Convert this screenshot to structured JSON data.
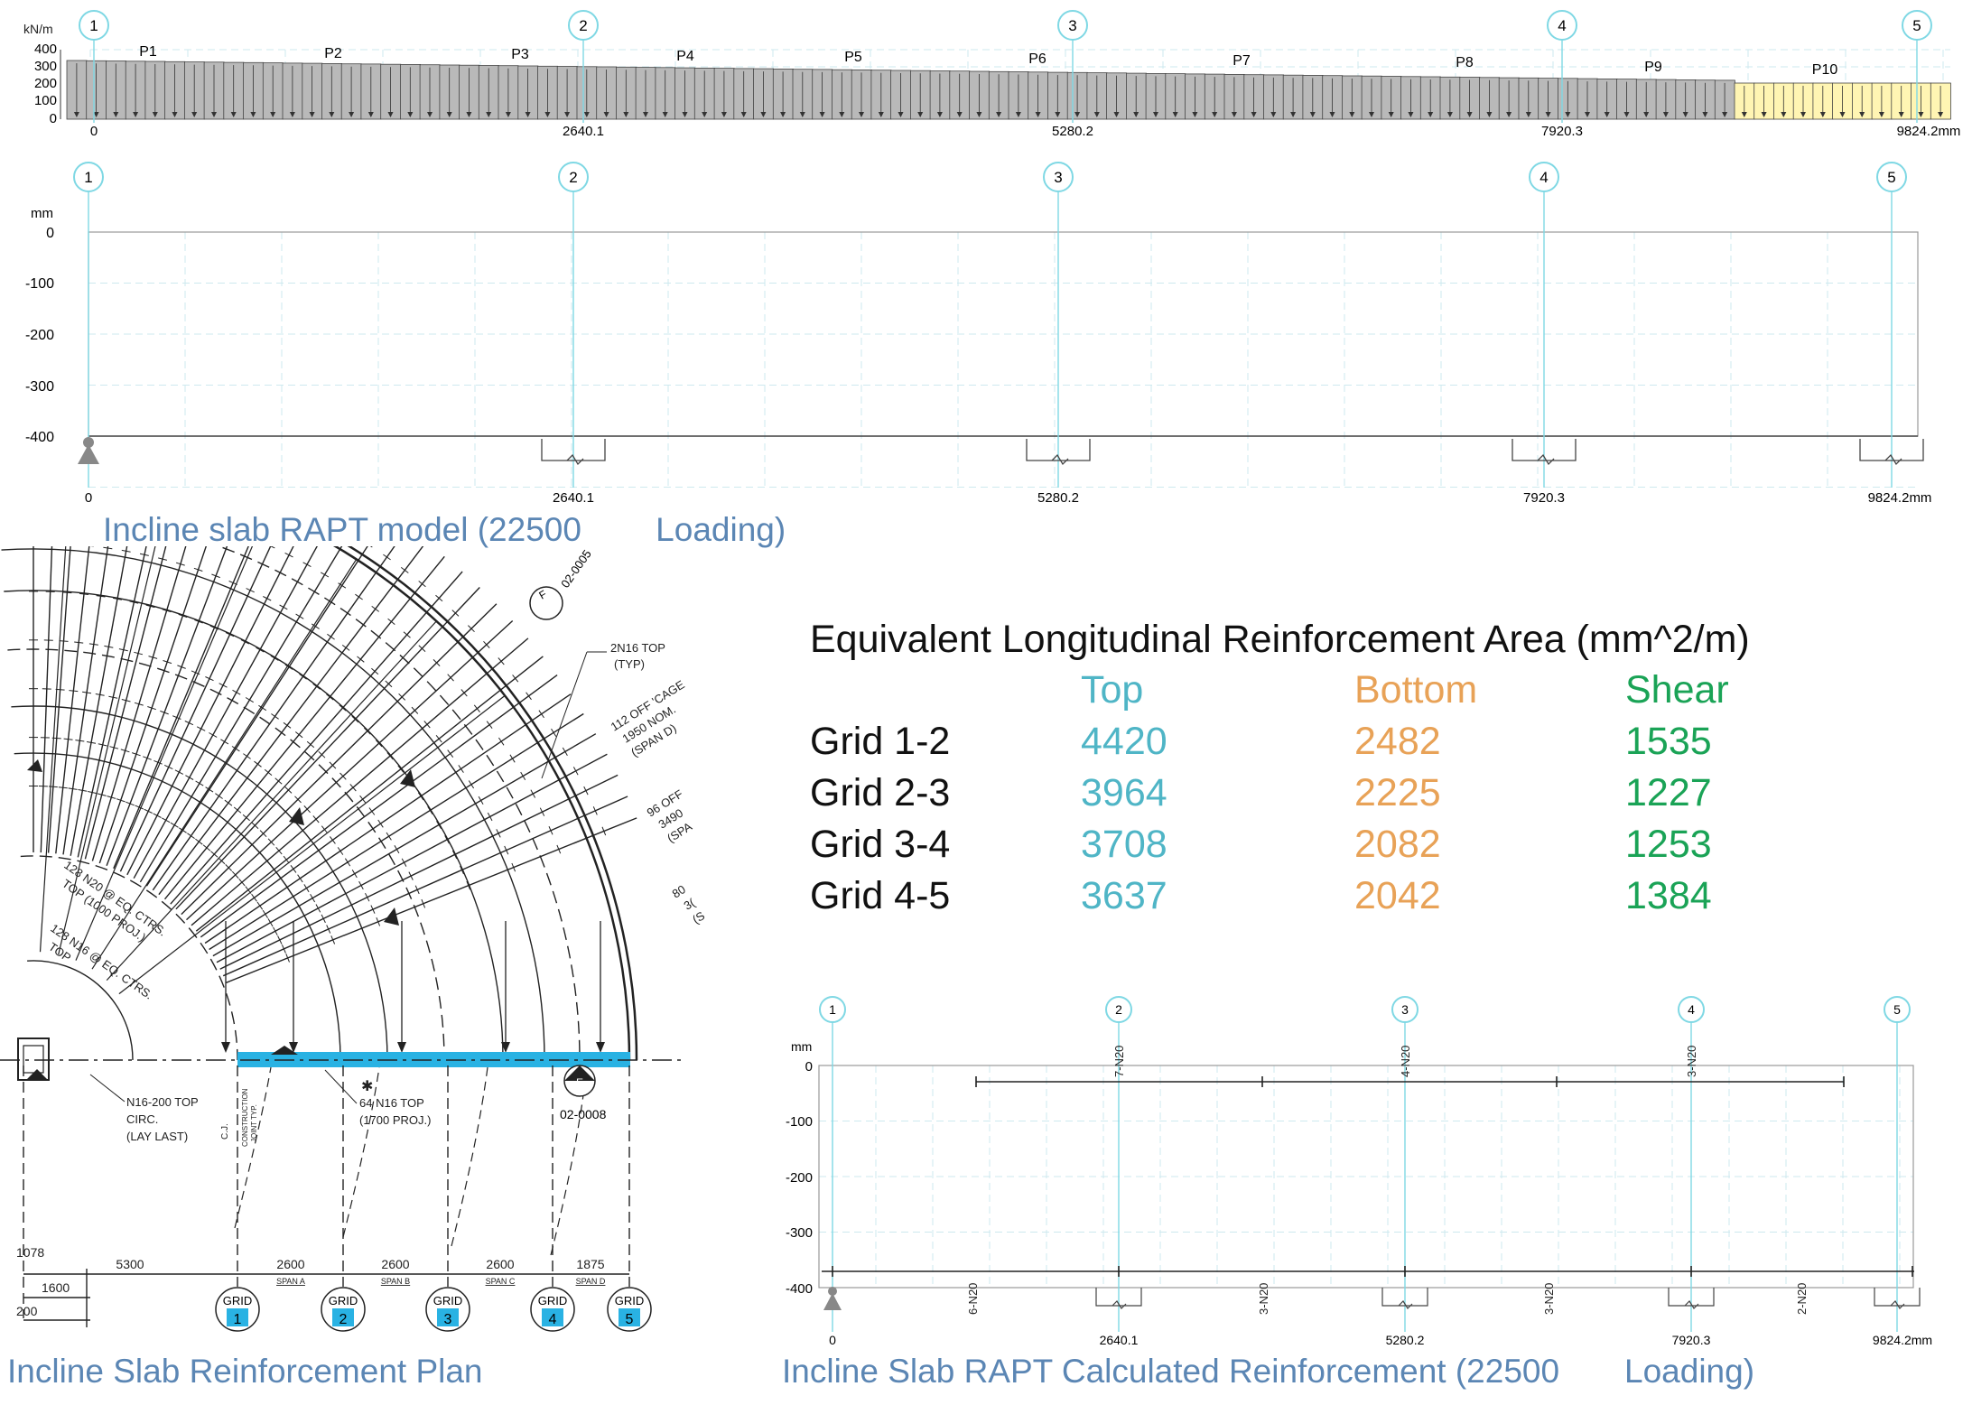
{
  "loading_chart": {
    "unit": "kN/m",
    "y_ticks": [
      "400",
      "300",
      "200",
      "100",
      "0"
    ],
    "grids": [
      "1",
      "2",
      "3",
      "4",
      "5"
    ],
    "panels": [
      "P1",
      "P2",
      "P3",
      "P4",
      "P5",
      "P6",
      "P7",
      "P8",
      "P9",
      "P10"
    ],
    "x_labels": [
      "0",
      "2640.1",
      "5280.2",
      "7920.3",
      "9824.2mm"
    ]
  },
  "deflection_chart": {
    "unit": "mm",
    "y_ticks": [
      "0",
      "-100",
      "-200",
      "-300",
      "-400"
    ],
    "grids": [
      "1",
      "2",
      "3",
      "4",
      "5"
    ],
    "x_labels": [
      "0",
      "2640.1",
      "5280.2",
      "7920.3",
      "9824.2mm"
    ]
  },
  "captions": {
    "model": "Incline slab RAPT model (22500        Loading)",
    "plan": "Incline Slab Reinforcement Plan",
    "calc": "Incline Slab RAPT Calculated Reinforcement (22500       Loading)"
  },
  "table": {
    "title": "Equivalent Longitudinal Reinforcement Area (mm^2/m)",
    "headers": [
      "Top",
      "Bottom",
      "Shear"
    ],
    "colors": {
      "top": "#4fb5c6",
      "bottom": "#e8a257",
      "shear": "#1aa356"
    },
    "rows": [
      {
        "grid": "Grid 1-2",
        "top": "4420",
        "bottom": "2482",
        "shear": "1535"
      },
      {
        "grid": "Grid 2-3",
        "top": "3964",
        "bottom": "2225",
        "shear": "1227"
      },
      {
        "grid": "Grid 3-4",
        "top": "3708",
        "bottom": "2082",
        "shear": "1253"
      },
      {
        "grid": "Grid 4-5",
        "top": "3637",
        "bottom": "2042",
        "shear": "1384"
      }
    ]
  },
  "plan": {
    "callouts": {
      "top_typ": [
        "2N16 TOP",
        "(TYP)"
      ],
      "cage_a": [
        "112 OFF 'CAGE",
        "1950 NOM.",
        "(SPAN D)"
      ],
      "cage_b": [
        "96 OFF",
        "3490",
        "(SPA"
      ],
      "cage_c": [
        "80",
        "3(",
        "(S"
      ],
      "n20": [
        "128 N20 @ EQ. CTRS.",
        "TOP (1000 PROJ.)"
      ],
      "n16": [
        "128 N16 @ EQ. CTRS.",
        "TOP"
      ],
      "circ": [
        "N16-200 TOP",
        "CIRC.",
        "(LAY LAST)"
      ],
      "n16_top": [
        "64 N16 TOP",
        "(1700 PROJ.)"
      ],
      "cj": [
        "C.J.",
        "CONSTRUCTION",
        "JOINT TYP."
      ],
      "ref_top": "02-0005",
      "ref_bottom": "02-0008",
      "section_top": "F",
      "section_bottom": "E"
    },
    "dimensions": [
      "5300",
      "2600",
      "2600",
      "2600",
      "1875"
    ],
    "spans": [
      "SPAN A",
      "SPAN B",
      "SPAN C",
      "SPAN D"
    ],
    "left_dims": [
      "1078",
      "1600",
      "200"
    ],
    "grid_word": "GRID",
    "grid_numbers": [
      "1",
      "2",
      "3",
      "4",
      "5"
    ]
  },
  "reinf_chart": {
    "unit": "mm",
    "y_ticks": [
      "0",
      "-100",
      "-200",
      "-300",
      "-400"
    ],
    "grids": [
      "1",
      "2",
      "3",
      "4",
      "5"
    ],
    "top_bars": [
      "7-N20",
      "4-N20",
      "3-N20"
    ],
    "bottom_bars": [
      "6-N20",
      "3-N20",
      "3-N20",
      "2-N20"
    ],
    "x_labels": [
      "0",
      "2640.1",
      "5280.2",
      "7920.3",
      "9824.2mm"
    ]
  }
}
